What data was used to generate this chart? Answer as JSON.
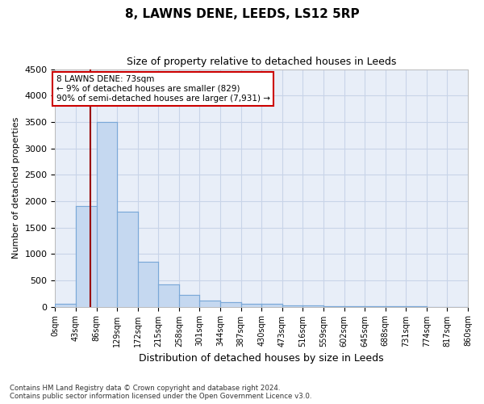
{
  "title": "8, LAWNS DENE, LEEDS, LS12 5RP",
  "subtitle": "Size of property relative to detached houses in Leeds",
  "xlabel": "Distribution of detached houses by size in Leeds",
  "ylabel": "Number of detached properties",
  "bar_color": "#c5d8f0",
  "bar_edge_color": "#7aa8d8",
  "grid_color": "#c8d4e8",
  "background_color": "#e8eef8",
  "marker_line_color": "#990000",
  "annotation_line1": "8 LAWNS DENE: 73sqm",
  "annotation_line2": "← 9% of detached houses are smaller (829)",
  "annotation_line3": "90% of semi-detached houses are larger (7,931) →",
  "annotation_box_color": "#ffffff",
  "annotation_box_edge": "#cc0000",
  "marker_value": 73,
  "bin_edges": [
    0,
    43,
    86,
    129,
    172,
    215,
    258,
    301,
    344,
    387,
    430,
    473,
    516,
    559,
    602,
    645,
    688,
    731,
    774,
    817,
    860
  ],
  "bar_heights": [
    50,
    1900,
    3500,
    1800,
    850,
    420,
    220,
    120,
    80,
    60,
    50,
    30,
    20,
    15,
    5,
    5,
    3,
    2,
    1,
    1
  ],
  "ylim": [
    0,
    4500
  ],
  "yticks": [
    0,
    500,
    1000,
    1500,
    2000,
    2500,
    3000,
    3500,
    4000,
    4500
  ],
  "footer_line1": "Contains HM Land Registry data © Crown copyright and database right 2024.",
  "footer_line2": "Contains public sector information licensed under the Open Government Licence v3.0."
}
